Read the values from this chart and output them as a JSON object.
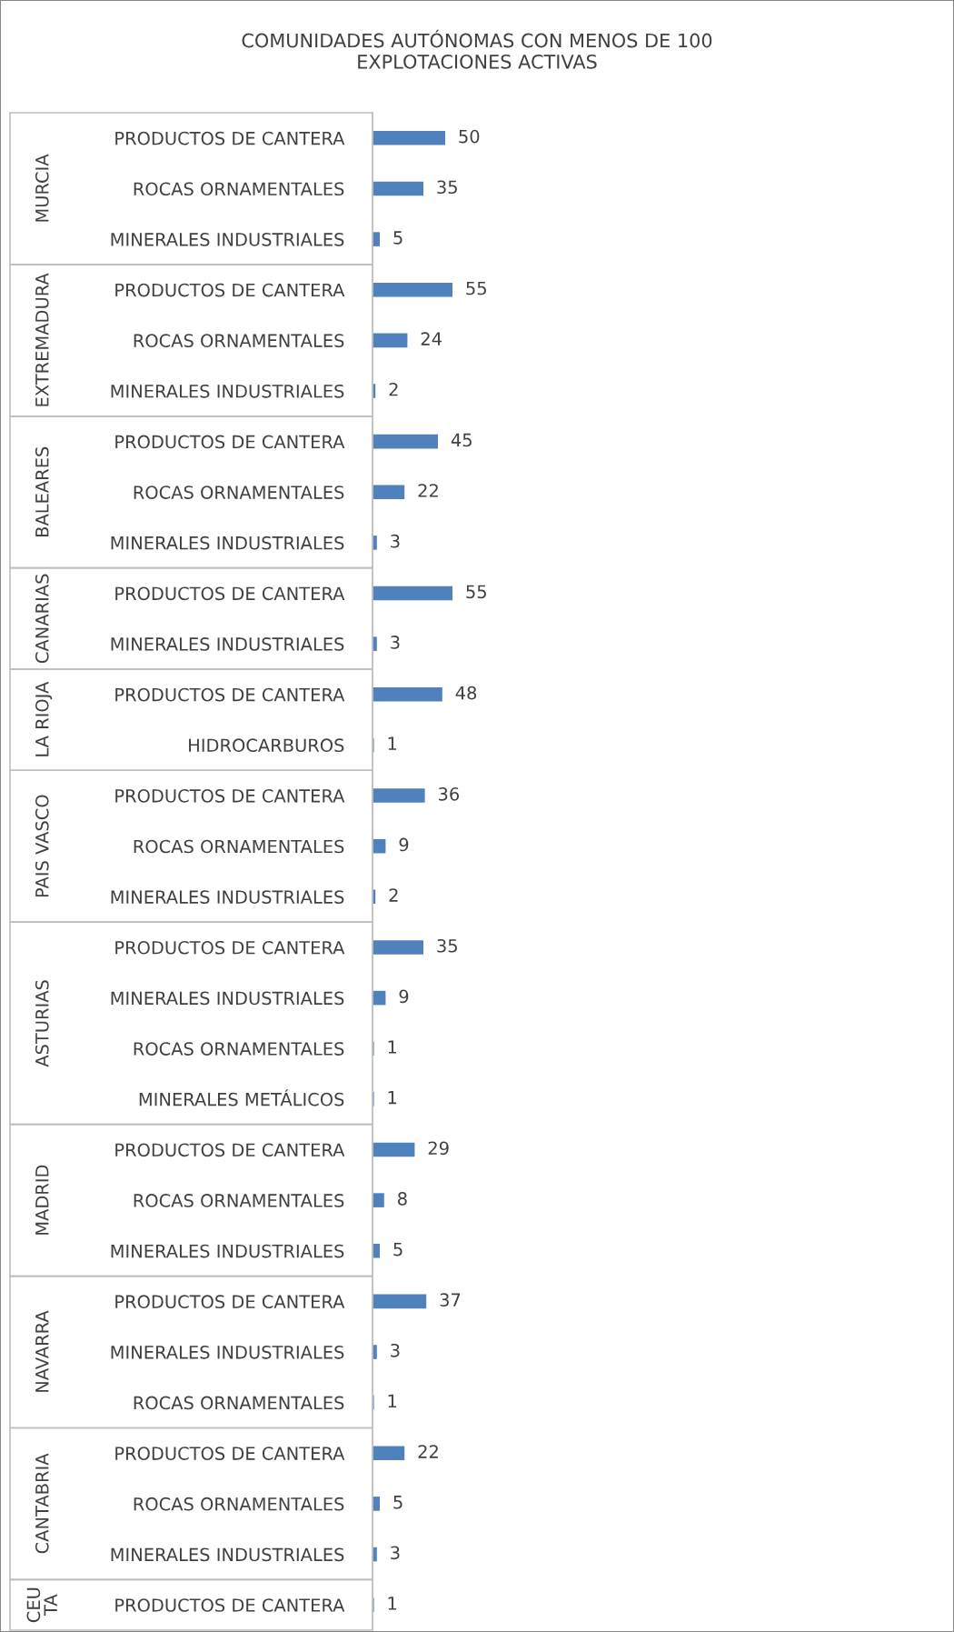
{
  "chart_data": {
    "type": "bar",
    "orientation": "horizontal",
    "title": "COMUNIDADES AUTÓNOMAS CON MENOS DE 100\nEXPLOTACIONES ACTIVAS",
    "categories": [
      "PRODUCTOS DE CANTERA",
      "ROCAS ORNAMENTALES",
      "MINERALES INDUSTRIALES",
      "PRODUCTOS DE CANTERA",
      "ROCAS ORNAMENTALES",
      "MINERALES INDUSTRIALES",
      "PRODUCTOS DE CANTERA",
      "ROCAS ORNAMENTALES",
      "MINERALES INDUSTRIALES",
      "PRODUCTOS DE CANTERA",
      "MINERALES INDUSTRIALES",
      "PRODUCTOS DE CANTERA",
      "HIDROCARBUROS",
      "PRODUCTOS DE CANTERA",
      "ROCAS ORNAMENTALES",
      "MINERALES INDUSTRIALES",
      "PRODUCTOS DE CANTERA",
      "MINERALES INDUSTRIALES",
      "ROCAS ORNAMENTALES",
      "MINERALES METÁLICOS",
      "PRODUCTOS DE CANTERA",
      "ROCAS ORNAMENTALES",
      "MINERALES INDUSTRIALES",
      "PRODUCTOS DE CANTERA",
      "MINERALES INDUSTRIALES",
      "ROCAS ORNAMENTALES",
      "PRODUCTOS DE CANTERA",
      "ROCAS ORNAMENTALES",
      "MINERALES INDUSTRIALES",
      "PRODUCTOS DE CANTERA"
    ],
    "values": [
      50,
      35,
      5,
      55,
      24,
      2,
      45,
      22,
      3,
      55,
      3,
      48,
      1,
      36,
      9,
      2,
      35,
      9,
      1,
      1,
      29,
      8,
      5,
      37,
      3,
      1,
      22,
      5,
      3,
      1
    ],
    "color": "#4f81bd",
    "data_labels": true,
    "grid": false,
    "legend": false,
    "annotations": [
      "MURCIA",
      "EXTREMADURA",
      "BALEARES",
      "CANARIAS",
      "LA RIOJA",
      "PAIS VASCO",
      "ASTURIAS",
      "MADRID",
      "NAVARRA",
      "CANTABRIA",
      "CEU\nTA"
    ]
  }
}
